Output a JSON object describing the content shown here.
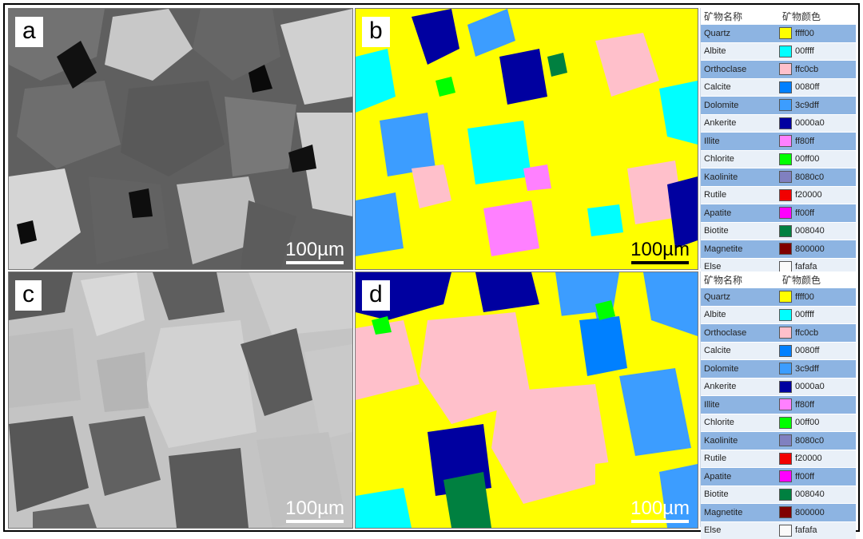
{
  "panels": {
    "a": {
      "label": "a",
      "scale": "100µm"
    },
    "b": {
      "label": "b",
      "scale": "100µm"
    },
    "c": {
      "label": "c",
      "scale": "100µm"
    },
    "d": {
      "label": "d",
      "scale": "100µm"
    }
  },
  "legend": {
    "header": {
      "name": "矿物名称",
      "color": "矿物颜色"
    },
    "items": [
      {
        "name": "Quartz",
        "hex": "ffff00",
        "color": "#ffff00"
      },
      {
        "name": "Albite",
        "hex": "00ffff",
        "color": "#00ffff"
      },
      {
        "name": "Orthoclase",
        "hex": "ffc0cb",
        "color": "#ffc0cb"
      },
      {
        "name": "Calcite",
        "hex": "0080ff",
        "color": "#0080ff"
      },
      {
        "name": "Dolomite",
        "hex": "3c9dff",
        "color": "#3c9dff"
      },
      {
        "name": "Ankerite",
        "hex": "0000a0",
        "color": "#0000a0"
      },
      {
        "name": "Illite",
        "hex": "ff80ff",
        "color": "#ff80ff"
      },
      {
        "name": "Chlorite",
        "hex": "00ff00",
        "color": "#00ff00"
      },
      {
        "name": "Kaolinite",
        "hex": "8080c0",
        "color": "#8080c0"
      },
      {
        "name": "Rutile",
        "hex": "f20000",
        "color": "#f20000"
      },
      {
        "name": "Apatite",
        "hex": "ff00ff",
        "color": "#ff00ff"
      },
      {
        "name": "Biotite",
        "hex": "008040",
        "color": "#008040"
      },
      {
        "name": "Magnetite",
        "hex": "800000",
        "color": "#800000"
      },
      {
        "name": "Else",
        "hex": "fafafa",
        "color": "#fafafa"
      }
    ]
  }
}
